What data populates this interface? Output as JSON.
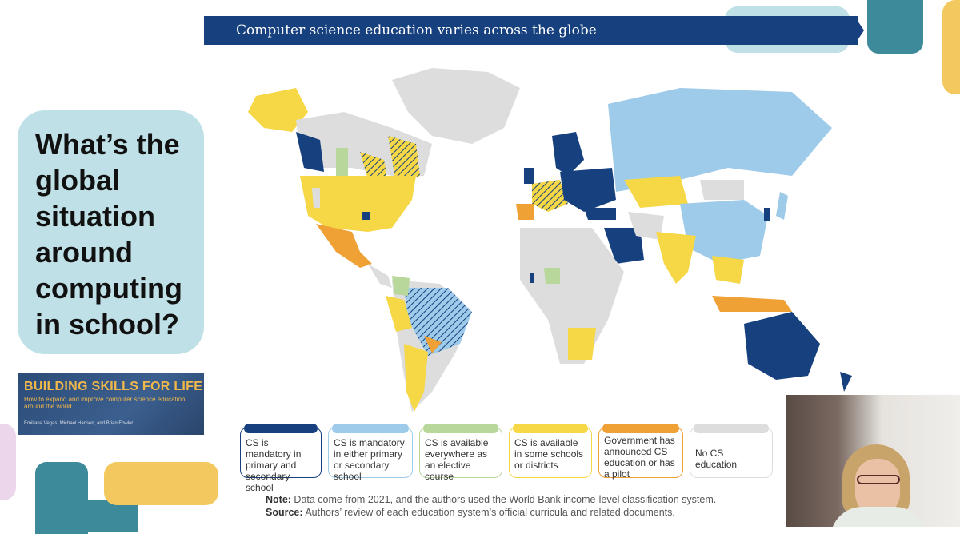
{
  "banner": {
    "title": "Computer science education varies across the globe"
  },
  "question": {
    "text": "What’s the\nglobal\nsituation\naround\ncomputing\nin school?"
  },
  "book": {
    "title": "BUILDING SKILLS FOR LIFE",
    "subtitle": "How to expand and improve computer science education around the world",
    "authors": "Emiliana Vegas, Michael Hansen, and Brian Fowler"
  },
  "legend": [
    {
      "label": "CS is mandatory in primary and secondary school",
      "color": "#17407e"
    },
    {
      "label": "CS is mandatory in either primary or secondary school",
      "color": "#9fcbea"
    },
    {
      "label": "CS is available everywhere as an elective course",
      "color": "#b8d79a"
    },
    {
      "label": "CS is available in some schools or districts",
      "color": "#f6d746"
    },
    {
      "label": "Government has announced CS education or has a pilot",
      "color": "#f0a136"
    },
    {
      "label": "No CS education",
      "color": "#dddddd"
    }
  ],
  "notes": {
    "note_key": "Note:",
    "note_text": " Data come from 2021, and the authors used the World Bank income-level classification system.",
    "source_key": "Source:",
    "source_text": " Authors’ review of each education system’s official curricula and related documents."
  },
  "map_legend_icons": [
    "map-region"
  ]
}
